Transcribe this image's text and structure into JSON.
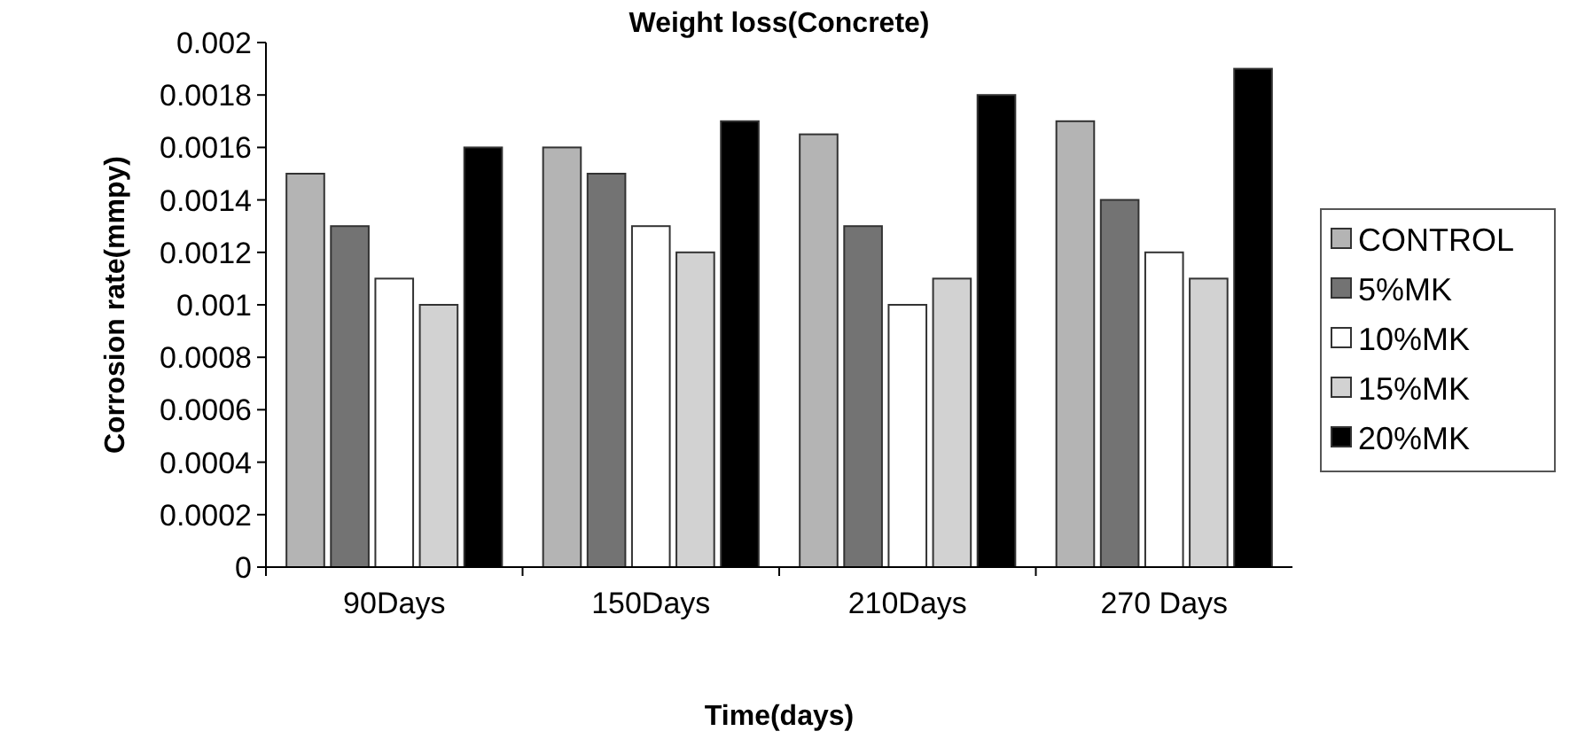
{
  "chart_data": {
    "type": "bar",
    "title": "Weight loss(Concrete)",
    "xlabel": "Time(days)",
    "ylabel": "Corrosion rate(mmpy)",
    "categories": [
      "90Days",
      "150Days",
      "210Days",
      "270 Days"
    ],
    "series": [
      {
        "name": "CONTROL",
        "color": "#b4b4b4",
        "values": [
          0.0015,
          0.0016,
          0.00165,
          0.0017
        ]
      },
      {
        "name": "5%MK",
        "color": "#737373",
        "values": [
          0.0013,
          0.0015,
          0.0013,
          0.0014
        ]
      },
      {
        "name": "10%MK",
        "color": "#ffffff",
        "values": [
          0.0011,
          0.0013,
          0.001,
          0.0012
        ]
      },
      {
        "name": "15%MK",
        "color": "#d2d2d2",
        "values": [
          0.001,
          0.0012,
          0.0011,
          0.0011
        ]
      },
      {
        "name": "20%MK",
        "color": "#000000",
        "values": [
          0.0016,
          0.0017,
          0.0018,
          0.0019
        ]
      }
    ],
    "ylim": [
      0,
      0.002
    ],
    "yticks": [
      0,
      0.0002,
      0.0004,
      0.0006,
      0.0008,
      0.001,
      0.0012,
      0.0014,
      0.0016,
      0.0018,
      0.002
    ],
    "grid": false,
    "legend": "right"
  }
}
